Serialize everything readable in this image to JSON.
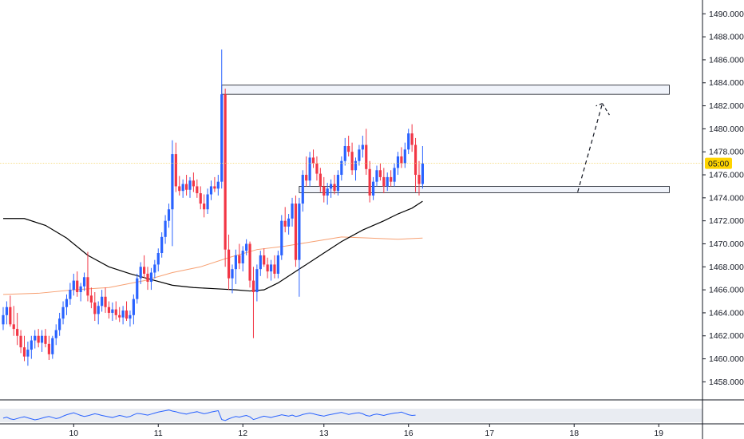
{
  "colors": {
    "up": "#2962ff",
    "down": "#f23645",
    "sma_long": "#000000",
    "sma_short": "#f7a072",
    "rsi": "#2962ff",
    "current_price_line": "#f5d76e",
    "badge": "#ffd400",
    "zone_fill": "#f0f3fa",
    "zone_stroke": "#131722",
    "axis_text": "#131722"
  },
  "chart_data": {
    "type": "candlestick",
    "y_range": [
      1456.5,
      1491.2
    ],
    "y_ticks": [
      "1458.000",
      "1460.000",
      "1462.000",
      "1464.000",
      "1466.000",
      "1468.000",
      "1470.000",
      "1472.000",
      "1474.000",
      "1476.000",
      "1478.000",
      "1480.000",
      "1482.000",
      "1484.000",
      "1486.000",
      "1488.000",
      "1490.000"
    ],
    "x_ticks": [
      {
        "label": "10",
        "idx": 20
      },
      {
        "label": "11",
        "idx": 44
      },
      {
        "label": "12",
        "idx": 68
      },
      {
        "label": "13",
        "idx": 91
      },
      {
        "label": "16",
        "idx": 115
      },
      {
        "label": "17",
        "idx": 138
      },
      {
        "label": "18",
        "idx": 162
      },
      {
        "label": "19",
        "idx": 186
      }
    ],
    "price_badge": "05:00",
    "current_price": 1477.0,
    "candles": [
      [
        1463.0,
        1464.5,
        1462.5,
        1463.8
      ],
      [
        1463.8,
        1465.0,
        1463.0,
        1464.5
      ],
      [
        1464.5,
        1465.5,
        1462.8,
        1463.0
      ],
      [
        1463.0,
        1464.6,
        1462.0,
        1462.6
      ],
      [
        1462.6,
        1464.0,
        1461.2,
        1462.0
      ],
      [
        1462.0,
        1462.5,
        1460.5,
        1461.0
      ],
      [
        1461.0,
        1462.0,
        1459.8,
        1460.2
      ],
      [
        1460.2,
        1461.5,
        1459.4,
        1460.8
      ],
      [
        1460.8,
        1462.0,
        1460.0,
        1461.6
      ],
      [
        1461.6,
        1462.5,
        1460.9,
        1462.0
      ],
      [
        1462.0,
        1462.6,
        1461.0,
        1461.4
      ],
      [
        1461.4,
        1462.5,
        1460.6,
        1462.0
      ],
      [
        1462.0,
        1462.6,
        1461.0,
        1461.3
      ],
      [
        1461.3,
        1462.0,
        1459.9,
        1460.4
      ],
      [
        1460.4,
        1462.0,
        1460.0,
        1461.8
      ],
      [
        1461.8,
        1463.0,
        1461.2,
        1462.5
      ],
      [
        1462.5,
        1464.0,
        1462.0,
        1463.5
      ],
      [
        1463.5,
        1465.0,
        1463.0,
        1464.5
      ],
      [
        1464.5,
        1465.6,
        1463.8,
        1465.2
      ],
      [
        1465.2,
        1466.6,
        1464.7,
        1466.0
      ],
      [
        1466.0,
        1467.4,
        1465.5,
        1466.8
      ],
      [
        1466.8,
        1467.6,
        1465.4,
        1465.8
      ],
      [
        1465.8,
        1466.6,
        1465.0,
        1466.3
      ],
      [
        1466.3,
        1467.5,
        1465.9,
        1467.1
      ],
      [
        1467.1,
        1469.3,
        1465.0,
        1465.5
      ],
      [
        1465.5,
        1466.2,
        1464.4,
        1464.9
      ],
      [
        1464.9,
        1465.8,
        1463.3,
        1463.9
      ],
      [
        1463.9,
        1465.0,
        1463.0,
        1464.6
      ],
      [
        1464.6,
        1466.0,
        1464.1,
        1465.4
      ],
      [
        1465.4,
        1466.2,
        1464.0,
        1464.5
      ],
      [
        1464.5,
        1465.0,
        1463.5,
        1464.0
      ],
      [
        1464.0,
        1464.9,
        1463.3,
        1464.3
      ],
      [
        1464.3,
        1465.0,
        1463.4,
        1463.8
      ],
      [
        1463.8,
        1464.5,
        1463.2,
        1463.6
      ],
      [
        1463.6,
        1464.6,
        1463.0,
        1464.2
      ],
      [
        1464.2,
        1465.0,
        1463.3,
        1463.5
      ],
      [
        1463.5,
        1464.2,
        1462.8,
        1463.8
      ],
      [
        1463.8,
        1465.6,
        1463.0,
        1465.2
      ],
      [
        1465.2,
        1467.4,
        1464.8,
        1467.0
      ],
      [
        1467.0,
        1468.4,
        1466.5,
        1468.0
      ],
      [
        1468.0,
        1469.0,
        1467.0,
        1467.4
      ],
      [
        1467.4,
        1468.0,
        1466.0,
        1466.7
      ],
      [
        1466.7,
        1467.9,
        1466.0,
        1467.5
      ],
      [
        1467.5,
        1468.6,
        1467.0,
        1468.2
      ],
      [
        1468.2,
        1469.6,
        1467.6,
        1469.2
      ],
      [
        1469.2,
        1471.0,
        1468.8,
        1470.6
      ],
      [
        1470.6,
        1472.5,
        1470.0,
        1472.0
      ],
      [
        1472.0,
        1473.5,
        1471.4,
        1473.0
      ],
      [
        1473.0,
        1479.0,
        1469.8,
        1477.8
      ],
      [
        1477.8,
        1478.8,
        1474.5,
        1475.0
      ],
      [
        1475.0,
        1475.9,
        1474.2,
        1474.6
      ],
      [
        1474.6,
        1475.6,
        1474.0,
        1475.2
      ],
      [
        1475.2,
        1476.0,
        1474.2,
        1474.7
      ],
      [
        1474.7,
        1475.8,
        1474.0,
        1475.5
      ],
      [
        1475.5,
        1476.2,
        1474.5,
        1475.0
      ],
      [
        1475.0,
        1475.6,
        1474.0,
        1474.4
      ],
      [
        1474.4,
        1475.0,
        1473.0,
        1473.5
      ],
      [
        1473.5,
        1474.3,
        1472.3,
        1473.0
      ],
      [
        1473.0,
        1474.8,
        1472.6,
        1474.3
      ],
      [
        1474.3,
        1475.5,
        1473.8,
        1475.0
      ],
      [
        1475.0,
        1475.8,
        1474.5,
        1474.8
      ],
      [
        1474.8,
        1476.0,
        1474.2,
        1475.4
      ],
      [
        1475.4,
        1486.9,
        1474.8,
        1483.0
      ],
      [
        1483.0,
        1483.5,
        1468.0,
        1469.5
      ],
      [
        1469.5,
        1470.8,
        1466.0,
        1467.0
      ],
      [
        1467.0,
        1468.2,
        1465.7,
        1467.8
      ],
      [
        1467.8,
        1469.5,
        1466.5,
        1469.0
      ],
      [
        1469.0,
        1470.0,
        1467.8,
        1468.3
      ],
      [
        1468.3,
        1469.8,
        1467.6,
        1469.4
      ],
      [
        1469.4,
        1470.4,
        1469.0,
        1470.0
      ],
      [
        1470.0,
        1470.2,
        1466.2,
        1466.8
      ],
      [
        1466.8,
        1468.0,
        1461.8,
        1465.8
      ],
      [
        1465.8,
        1468.2,
        1465.0,
        1467.8
      ],
      [
        1467.8,
        1469.4,
        1467.2,
        1469.0
      ],
      [
        1469.0,
        1469.6,
        1468.0,
        1468.2
      ],
      [
        1468.2,
        1468.8,
        1467.0,
        1467.6
      ],
      [
        1467.6,
        1468.6,
        1466.8,
        1468.2
      ],
      [
        1468.2,
        1469.0,
        1467.0,
        1467.4
      ],
      [
        1467.4,
        1469.4,
        1467.0,
        1469.0
      ],
      [
        1469.0,
        1472.5,
        1468.6,
        1472.0
      ],
      [
        1472.0,
        1473.2,
        1471.0,
        1471.5
      ],
      [
        1471.5,
        1472.6,
        1470.8,
        1472.2
      ],
      [
        1472.2,
        1474.0,
        1471.5,
        1473.5
      ],
      [
        1473.5,
        1474.2,
        1468.0,
        1468.6
      ],
      [
        1468.6,
        1474.0,
        1465.4,
        1473.5
      ],
      [
        1473.5,
        1476.4,
        1472.8,
        1476.0
      ],
      [
        1476.0,
        1477.6,
        1475.0,
        1475.5
      ],
      [
        1475.5,
        1478.0,
        1475.0,
        1477.5
      ],
      [
        1477.5,
        1478.2,
        1476.6,
        1477.0
      ],
      [
        1477.0,
        1477.6,
        1475.5,
        1476.1
      ],
      [
        1476.1,
        1476.6,
        1474.5,
        1475.0
      ],
      [
        1475.0,
        1475.8,
        1473.6,
        1474.2
      ],
      [
        1474.2,
        1475.3,
        1473.4,
        1474.8
      ],
      [
        1474.8,
        1475.6,
        1474.0,
        1475.2
      ],
      [
        1475.2,
        1476.0,
        1474.3,
        1474.6
      ],
      [
        1474.6,
        1476.4,
        1474.2,
        1476.0
      ],
      [
        1476.0,
        1477.6,
        1475.5,
        1477.2
      ],
      [
        1477.2,
        1479.2,
        1476.8,
        1478.5
      ],
      [
        1478.5,
        1479.4,
        1477.6,
        1478.0
      ],
      [
        1478.0,
        1478.8,
        1476.0,
        1476.4
      ],
      [
        1476.4,
        1477.5,
        1475.5,
        1477.2
      ],
      [
        1477.2,
        1478.6,
        1476.8,
        1478.2
      ],
      [
        1478.2,
        1479.4,
        1477.5,
        1478.6
      ],
      [
        1478.6,
        1480.0,
        1476.0,
        1476.5
      ],
      [
        1476.5,
        1477.2,
        1473.6,
        1474.2
      ],
      [
        1474.2,
        1475.8,
        1473.8,
        1475.4
      ],
      [
        1475.4,
        1476.8,
        1475.0,
        1476.4
      ],
      [
        1476.4,
        1477.0,
        1475.5,
        1475.8
      ],
      [
        1475.8,
        1476.6,
        1474.4,
        1475.0
      ],
      [
        1475.0,
        1476.2,
        1474.6,
        1475.8
      ],
      [
        1475.8,
        1476.4,
        1475.0,
        1475.4
      ],
      [
        1475.4,
        1477.0,
        1475.0,
        1476.6
      ],
      [
        1476.6,
        1478.0,
        1476.0,
        1477.6
      ],
      [
        1477.6,
        1478.4,
        1476.6,
        1477.0
      ],
      [
        1477.0,
        1478.8,
        1476.6,
        1478.2
      ],
      [
        1478.2,
        1480.0,
        1477.8,
        1479.6
      ],
      [
        1479.6,
        1480.4,
        1478.0,
        1478.6
      ],
      [
        1478.6,
        1479.2,
        1474.5,
        1476.0
      ],
      [
        1476.0,
        1477.2,
        1474.2,
        1475.2
      ],
      [
        1475.2,
        1478.5,
        1474.8,
        1477.0
      ]
    ],
    "sma_long": [
      [
        0,
        1472.2
      ],
      [
        6,
        1472.2
      ],
      [
        12,
        1471.6
      ],
      [
        18,
        1470.5
      ],
      [
        24,
        1469.0
      ],
      [
        30,
        1468.0
      ],
      [
        36,
        1467.4
      ],
      [
        42,
        1466.9
      ],
      [
        48,
        1466.4
      ],
      [
        54,
        1466.2
      ],
      [
        60,
        1466.1
      ],
      [
        66,
        1466.0
      ],
      [
        70,
        1465.9
      ],
      [
        74,
        1466.0
      ],
      [
        78,
        1466.6
      ],
      [
        84,
        1467.8
      ],
      [
        90,
        1469.0
      ],
      [
        96,
        1470.2
      ],
      [
        102,
        1471.2
      ],
      [
        108,
        1472.0
      ],
      [
        112,
        1472.6
      ],
      [
        116,
        1473.1
      ],
      [
        119,
        1473.7
      ]
    ],
    "sma_short": [
      [
        0,
        1465.6
      ],
      [
        10,
        1465.7
      ],
      [
        20,
        1466.0
      ],
      [
        30,
        1466.2
      ],
      [
        40,
        1466.8
      ],
      [
        48,
        1467.5
      ],
      [
        56,
        1468.0
      ],
      [
        64,
        1468.8
      ],
      [
        72,
        1469.5
      ],
      [
        80,
        1469.8
      ],
      [
        88,
        1470.2
      ],
      [
        96,
        1470.6
      ],
      [
        104,
        1470.5
      ],
      [
        112,
        1470.4
      ],
      [
        119,
        1470.5
      ]
    ],
    "rsi": [
      42,
      45,
      40,
      38,
      41,
      44,
      46,
      43,
      40,
      37,
      39,
      42,
      45,
      47,
      44,
      41,
      43,
      48,
      52,
      55,
      58,
      54,
      50,
      47,
      49,
      52,
      55,
      53,
      50,
      48,
      46,
      44,
      47,
      50,
      48,
      45,
      47,
      52,
      56,
      55,
      53,
      51,
      54,
      57,
      60,
      62,
      64,
      66,
      63,
      61,
      58,
      56,
      54,
      57,
      59,
      61,
      58,
      55,
      57,
      60,
      62,
      64,
      38,
      35,
      40,
      44,
      47,
      45,
      48,
      50,
      46,
      38,
      41,
      45,
      48,
      46,
      44,
      47,
      49,
      52,
      50,
      48,
      51,
      47,
      49,
      53,
      55,
      57,
      55,
      52,
      50,
      48,
      51,
      53,
      55,
      57,
      59,
      56,
      53,
      55,
      57,
      58,
      55,
      50,
      48,
      52,
      54,
      52,
      50,
      53,
      55,
      57,
      58,
      60,
      56,
      52,
      50,
      51
    ],
    "zones": [
      {
        "y1": 1483.0,
        "y2": 1483.8,
        "from": 62,
        "to": 189
      },
      {
        "y1": 1474.5,
        "y2": 1475.0,
        "from": 84,
        "to": 189
      }
    ],
    "arrow": [
      [
        163,
        1474.5
      ],
      [
        170,
        1482.2
      ],
      [
        172,
        1481.2
      ]
    ]
  }
}
